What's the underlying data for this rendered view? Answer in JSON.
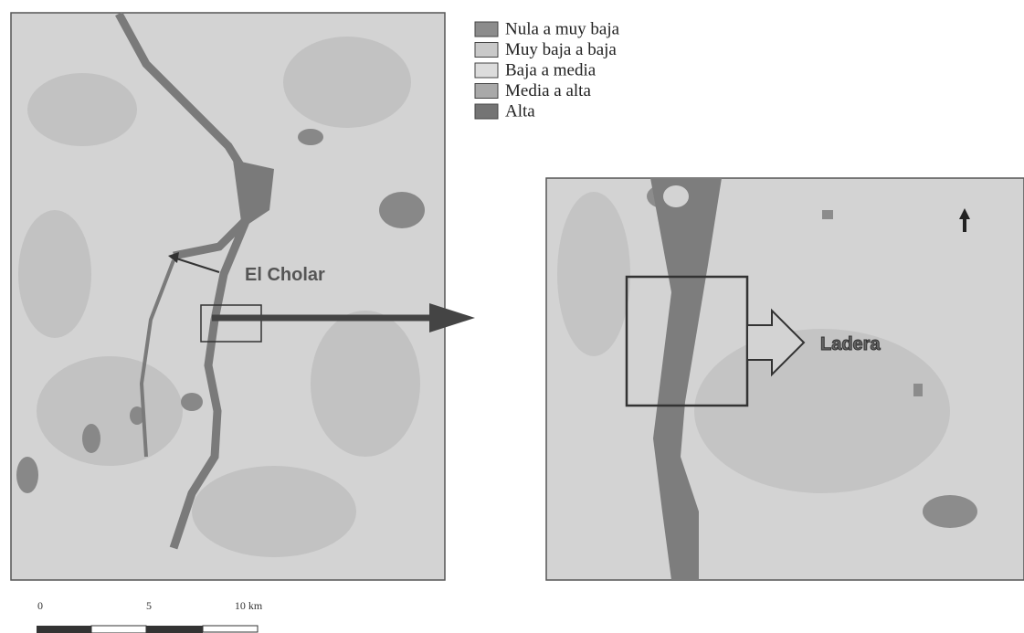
{
  "legend": {
    "items": [
      {
        "label": "Nula a muy baja",
        "color": "#8c8c8c"
      },
      {
        "label": "Muy baja a baja",
        "color": "#c9c9c9"
      },
      {
        "label": "Baja a media",
        "color": "#dcdcdc"
      },
      {
        "label": "Media a alta",
        "color": "#a9a9a9"
      },
      {
        "label": "Alta",
        "color": "#747474"
      }
    ]
  },
  "left_map": {
    "label": "El Cholar"
  },
  "right_map": {
    "label": "Ladera"
  },
  "scale_bar": {
    "labels": [
      "0",
      "5",
      "10 km"
    ]
  }
}
